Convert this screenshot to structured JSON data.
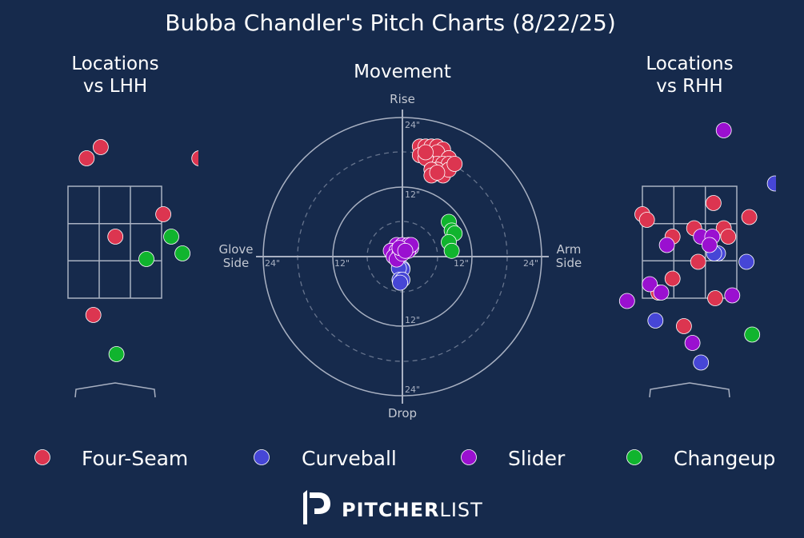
{
  "colors": {
    "background": "#162a4c",
    "grid": "#a9b1c2",
    "text": "#ffffff",
    "muted": "#c3c8d2",
    "four_seam": "#dc3550",
    "curveball": "#4646d6",
    "slider": "#9a10d0",
    "changeup": "#10b42e"
  },
  "title": "Bubba Chandler's Pitch Charts (8/22/25)",
  "panels": {
    "lhh_title_line1": "Locations",
    "lhh_title_line2": "vs LHH",
    "movement_title": "Movement",
    "rhh_title_line1": "Locations",
    "rhh_title_line2": "vs RHH"
  },
  "movement_axes": {
    "rise": "Rise",
    "drop": "Drop",
    "glove_line1": "Glove",
    "glove_line2": "Side",
    "arm_line1": "Arm",
    "arm_line2": "Side",
    "ring_12": "12\"",
    "ring_24": "24\""
  },
  "legend": [
    {
      "key": "four_seam",
      "label": "Four-Seam"
    },
    {
      "key": "curveball",
      "label": "Curveball"
    },
    {
      "key": "slider",
      "label": "Slider"
    },
    {
      "key": "changeup",
      "label": "Changeup"
    }
  ],
  "logo": {
    "bold": "PITCHER",
    "light": "LIST"
  },
  "chart_data": [
    {
      "type": "scatter",
      "name": "locations-lhh",
      "title": "Locations vs LHH",
      "units": "feet (catcher view, x = plate side, z = height)",
      "strike_zone": {
        "x": [
          -0.83,
          0.83
        ],
        "z": [
          1.5,
          3.5
        ]
      },
      "series": [
        {
          "key": "four_seam",
          "name": "Four-Seam",
          "points": [
            [
              -0.5,
              4.0
            ],
            [
              -0.25,
              4.2
            ],
            [
              0.86,
              3.0
            ],
            [
              0.01,
              2.6
            ],
            [
              -0.38,
              1.2
            ],
            [
              1.5,
              4.0
            ]
          ]
        },
        {
          "key": "changeup",
          "name": "Changeup",
          "points": [
            [
              1.0,
              2.6
            ],
            [
              1.2,
              2.3
            ],
            [
              0.56,
              2.2
            ],
            [
              0.03,
              0.5
            ]
          ]
        }
      ]
    },
    {
      "type": "scatter",
      "name": "movement",
      "title": "Movement",
      "units": "inches of break (x: + arm side, y: + rise)",
      "rings": [
        12,
        24
      ],
      "series": [
        {
          "key": "four_seam",
          "name": "Four-Seam",
          "points": [
            [
              3,
              19
            ],
            [
              4,
              19
            ],
            [
              5,
              19
            ],
            [
              6,
              19
            ],
            [
              7,
              18.5
            ],
            [
              3,
              17.5
            ],
            [
              5,
              17.5
            ],
            [
              6,
              18
            ],
            [
              8,
              17
            ],
            [
              5,
              16
            ],
            [
              6,
              16
            ],
            [
              7,
              16
            ],
            [
              8,
              16
            ],
            [
              4,
              17
            ],
            [
              6,
              15
            ],
            [
              5,
              15
            ],
            [
              7,
              14
            ],
            [
              8,
              15
            ],
            [
              5,
              14
            ],
            [
              4,
              18
            ],
            [
              6,
              14.5
            ],
            [
              9,
              16
            ]
          ]
        },
        {
          "key": "changeup",
          "name": "Changeup",
          "points": [
            [
              8,
              6
            ],
            [
              8.5,
              4.5
            ],
            [
              9,
              4
            ],
            [
              8,
              2.5
            ],
            [
              8.5,
              1
            ]
          ]
        },
        {
          "key": "curveball",
          "name": "Curveball",
          "points": [
            [
              -0.5,
              0
            ],
            [
              -0.8,
              -0.3
            ],
            [
              0,
              -2
            ],
            [
              0,
              -2.2
            ],
            [
              -0.6,
              -2
            ],
            [
              -0.5,
              -4
            ],
            [
              0,
              -4
            ],
            [
              -0.4,
              -4.5
            ]
          ]
        },
        {
          "key": "slider",
          "name": "Slider",
          "points": [
            [
              -1,
              2
            ],
            [
              0,
              2
            ],
            [
              1,
              2
            ],
            [
              1.5,
              1.5
            ],
            [
              -2,
              1
            ],
            [
              -1,
              1
            ],
            [
              0,
              1
            ],
            [
              1,
              1
            ],
            [
              -1.5,
              0
            ],
            [
              -0.5,
              0.5
            ],
            [
              -1,
              -0.5
            ],
            [
              1.5,
              2
            ],
            [
              0,
              0.5
            ],
            [
              -0.5,
              1.5
            ],
            [
              0.5,
              1
            ]
          ]
        }
      ]
    },
    {
      "type": "scatter",
      "name": "locations-rhh",
      "title": "Locations vs RHH",
      "units": "feet (catcher view, x = plate side, z = height)",
      "strike_zone": {
        "x": [
          -0.83,
          0.83
        ],
        "z": [
          1.5,
          3.5
        ]
      },
      "series": [
        {
          "key": "four_seam",
          "name": "Four-Seam",
          "points": [
            [
              -0.83,
              3.0
            ],
            [
              -0.75,
              2.9
            ],
            [
              0.42,
              3.2
            ],
            [
              1.05,
              2.95
            ],
            [
              0.08,
              2.75
            ],
            [
              0.6,
              2.75
            ],
            [
              0.68,
              2.6
            ],
            [
              -0.3,
              2.6
            ],
            [
              0.15,
              2.15
            ],
            [
              -0.3,
              1.85
            ],
            [
              -0.55,
              1.6
            ],
            [
              0.45,
              1.5
            ],
            [
              -0.1,
              1.0
            ]
          ]
        },
        {
          "key": "curveball",
          "name": "Curveball",
          "points": [
            [
              1.5,
              3.55
            ],
            [
              0.5,
              2.3
            ],
            [
              0.43,
              2.3
            ],
            [
              1.0,
              2.15
            ],
            [
              -0.6,
              1.1
            ],
            [
              0.2,
              0.35
            ]
          ]
        },
        {
          "key": "slider",
          "name": "Slider",
          "points": [
            [
              0.6,
              4.5
            ],
            [
              0.2,
              2.6
            ],
            [
              0.4,
              2.6
            ],
            [
              0.35,
              2.45
            ],
            [
              -0.4,
              2.45
            ],
            [
              -0.7,
              1.75
            ],
            [
              0.75,
              1.55
            ],
            [
              -0.5,
              1.6
            ],
            [
              -1.1,
              1.45
            ],
            [
              0.05,
              0.7
            ]
          ]
        },
        {
          "key": "changeup",
          "name": "Changeup",
          "points": [
            [
              1.1,
              0.85
            ]
          ]
        }
      ]
    }
  ]
}
